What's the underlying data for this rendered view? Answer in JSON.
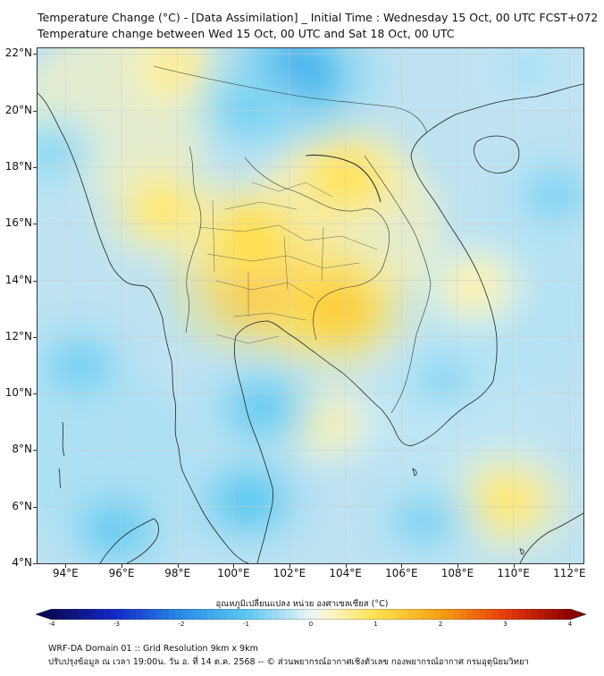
{
  "title": {
    "line1": "Temperature Change (°C) - [Data Assimilation] _ Initial Time : Wednesday 15 Oct, 00 UTC FCST+072",
    "line2": "Temperature change between Wed 15 Oct, 00 UTC and Sat 18 Oct, 00 UTC"
  },
  "map": {
    "lat_labels": [
      "22°N",
      "20°N",
      "18°N",
      "16°N",
      "14°N",
      "12°N",
      "10°N",
      "8°N",
      "6°N",
      "4°N"
    ],
    "lon_labels": [
      "94°E",
      "96°E",
      "98°E",
      "100°E",
      "102°E",
      "104°E",
      "106°E",
      "108°E",
      "110°E",
      "112°E"
    ],
    "extent": {
      "lon_min": 93,
      "lon_max": 112.5,
      "lat_min": 4,
      "lat_max": 22.2
    },
    "anomalies": [
      {
        "name": "central-thailand-warm",
        "lon": 101.2,
        "lat": 13.9,
        "delta": 1.9
      },
      {
        "name": "cambodia-warm",
        "lon": 103.7,
        "lat": 13.0,
        "delta": 1.5
      },
      {
        "name": "north-thailand-warm",
        "lon": 100.5,
        "lat": 15.5,
        "delta": 1.2
      },
      {
        "name": "laos-warm",
        "lon": 104.0,
        "lat": 17.6,
        "delta": 1.1
      },
      {
        "name": "myanmar-warm",
        "lon": 97.5,
        "lat": 16.5,
        "delta": 0.9
      },
      {
        "name": "north-myanmar-warm",
        "lon": 98.0,
        "lat": 21.5,
        "delta": 0.7
      },
      {
        "name": "vietnam-coast-warm",
        "lon": 108.6,
        "lat": 13.8,
        "delta": 0.5
      },
      {
        "name": "south-china-sea-warm",
        "lon": 109.8,
        "lat": 6.2,
        "delta": 0.9
      },
      {
        "name": "gulf-warm",
        "lon": 103.2,
        "lat": 9.0,
        "delta": 0.5
      },
      {
        "name": "north-vietnam-cold",
        "lon": 102.2,
        "lat": 21.3,
        "delta": -1.6
      },
      {
        "name": "north-laos-cold",
        "lon": 100.5,
        "lat": 20.0,
        "delta": -0.9
      },
      {
        "name": "andaman-cold",
        "lon": 94.5,
        "lat": 11.0,
        "delta": -0.9
      },
      {
        "name": "west-sea-cold",
        "lon": 93.5,
        "lat": 18.5,
        "delta": -0.7
      },
      {
        "name": "gulf-south-cold",
        "lon": 101.0,
        "lat": 9.5,
        "delta": -1.0
      },
      {
        "name": "malay-cold",
        "lon": 100.5,
        "lat": 6.2,
        "delta": -1.1
      },
      {
        "name": "sw-cold",
        "lon": 95.8,
        "lat": 5.2,
        "delta": -1.0
      },
      {
        "name": "scs-cold",
        "lon": 106.8,
        "lat": 5.5,
        "delta": -0.8
      },
      {
        "name": "east-cold",
        "lon": 111.5,
        "lat": 17.0,
        "delta": -0.8
      },
      {
        "name": "east-sea-cold",
        "lon": 107.5,
        "lat": 10.5,
        "delta": -0.7
      },
      {
        "name": "ne-cold",
        "lon": 110.5,
        "lat": 21.5,
        "delta": -0.5
      }
    ]
  },
  "colorbar": {
    "title": "อุณหภูมิเปลี่ยนแปลง หน่วย องศาเซลเซียส (°C)",
    "min": -4,
    "max": 4,
    "ticks": [
      "-4",
      "-3",
      "-2",
      "-1",
      "0",
      "1",
      "2",
      "3",
      "4"
    ]
  },
  "footer": {
    "line1": "WRF-DA Domain 01 :: Grid Resolution 9km x 9km",
    "line2": "ปรับปรุงข้อมูล ณ เวลา 19:00น. วัน อ. ที่ 14 ต.ค. 2568 -- © ส่วนพยากรณ์อากาศเชิงตัวเลข กองพยากรณ์อากาศ กรมอุตุนิยมวิทยา"
  }
}
